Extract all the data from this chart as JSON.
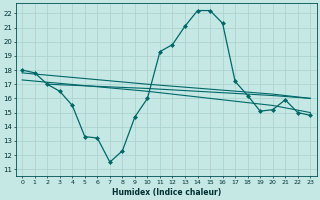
{
  "title": "",
  "xlabel": "Humidex (Indice chaleur)",
  "ylabel": "",
  "bg_color": "#c5e8e5",
  "grid_color": "#a8d0cc",
  "line_color": "#006868",
  "xlim": [
    -0.5,
    23.5
  ],
  "ylim": [
    10.5,
    22.7
  ],
  "yticks": [
    11,
    12,
    13,
    14,
    15,
    16,
    17,
    18,
    19,
    20,
    21,
    22
  ],
  "xticks": [
    0,
    1,
    2,
    3,
    4,
    5,
    6,
    7,
    8,
    9,
    10,
    11,
    12,
    13,
    14,
    15,
    16,
    17,
    18,
    19,
    20,
    21,
    22,
    23
  ],
  "series": [
    {
      "x": [
        0,
        1,
        2,
        3,
        4,
        5,
        6,
        7,
        8,
        9,
        10,
        11,
        12,
        13,
        14,
        15,
        16,
        17,
        18,
        19,
        20,
        21,
        22,
        23
      ],
      "y": [
        18.0,
        17.8,
        17.0,
        16.5,
        15.5,
        13.3,
        13.2,
        11.5,
        12.3,
        14.7,
        16.0,
        19.3,
        19.8,
        21.1,
        22.2,
        22.2,
        21.3,
        17.2,
        16.2,
        15.1,
        15.2,
        15.9,
        15.0,
        14.8
      ],
      "marker": "D",
      "markersize": 2,
      "linewidth": 0.9
    },
    {
      "x": [
        0,
        10,
        20,
        23
      ],
      "y": [
        17.8,
        17.0,
        16.3,
        16.0
      ],
      "marker": null,
      "markersize": 0,
      "linewidth": 0.8
    },
    {
      "x": [
        2,
        10,
        20,
        23
      ],
      "y": [
        17.0,
        16.7,
        16.2,
        16.0
      ],
      "marker": null,
      "markersize": 0,
      "linewidth": 0.8
    },
    {
      "x": [
        0,
        10,
        20,
        23
      ],
      "y": [
        17.3,
        16.5,
        15.5,
        15.0
      ],
      "marker": null,
      "markersize": 0,
      "linewidth": 0.8
    }
  ]
}
